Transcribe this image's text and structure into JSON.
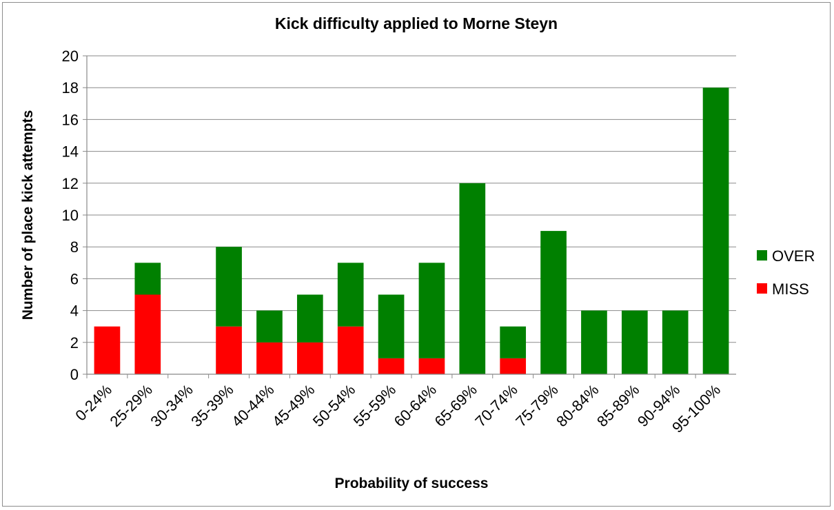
{
  "chart_data": {
    "type": "bar",
    "stacked": true,
    "title": "Kick difficulty applied to Morne Steyn",
    "xlabel": "Probability of success",
    "ylabel": "Number of place kick attempts",
    "ylim": [
      0,
      20
    ],
    "yticks": [
      0,
      2,
      4,
      6,
      8,
      10,
      12,
      14,
      16,
      18,
      20
    ],
    "grid": true,
    "legend_position": "right",
    "categories": [
      "0-24%",
      "25-29%",
      "30-34%",
      "35-39%",
      "40-44%",
      "45-49%",
      "50-54%",
      "55-59%",
      "60-64%",
      "65-69%",
      "70-74%",
      "75-79%",
      "80-84%",
      "85-89%",
      "90-94%",
      "95-100%"
    ],
    "series": [
      {
        "name": "MISS",
        "color": "#ff0000",
        "values": [
          3,
          5,
          0,
          3,
          2,
          2,
          3,
          1,
          1,
          0,
          1,
          0,
          0,
          0,
          0,
          0
        ]
      },
      {
        "name": "OVER",
        "color": "#008000",
        "values": [
          0,
          2,
          0,
          5,
          2,
          3,
          4,
          4,
          6,
          12,
          2,
          9,
          4,
          4,
          4,
          18
        ]
      }
    ]
  }
}
